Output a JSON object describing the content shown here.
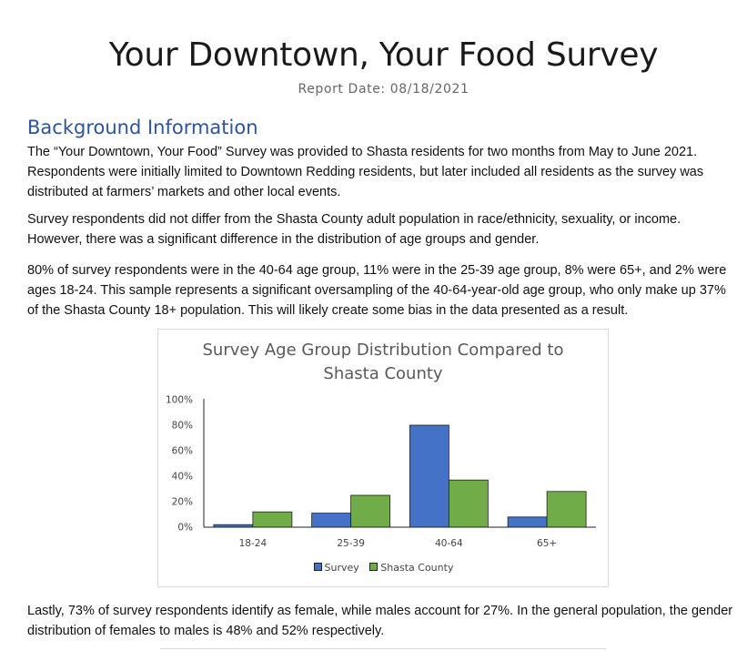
{
  "page": {
    "title": "Your Downtown, Your Food Survey",
    "report_date": "Report Date: 08/18/2021",
    "section_heading": "Background Information",
    "paragraphs": [
      "The “Your Downtown, Your Food” Survey was provided to Shasta residents for two months from May to June 2021. Respondents were initially limited to Downtown Redding residents, but later included all residents as the survey was distributed at farmers’ markets and other local events.",
      "Survey respondents did not differ from the Shasta County adult population in race/ethnicity, sexuality, or income. However, there was a significant difference in the distribution of age groups and gender.",
      "80% of survey respondents were in the 40-64 age group, 11% were in the 25-39 age group, 8% were 65+, and 2% were ages 18-24.  This sample represents a significant oversampling of the 40-64-year-old age group, who only make up 37% of the Shasta County 18+ population.  This will likely create some bias in the data presented as a result.",
      "Lastly, 73% of survey respondents identify as female, while males account for 27%.  In the general population, the gender distribution of females to males is 48% and 52% respectively."
    ]
  },
  "chart_data": {
    "type": "bar",
    "title_lines": [
      "Survey Age Group Distribution Compared to",
      "Shasta County"
    ],
    "categories": [
      "18-24",
      "25-39",
      "40-64",
      "65+"
    ],
    "series": [
      {
        "name": "Survey",
        "values": [
          2,
          11,
          80,
          8
        ],
        "color": "#4472c4"
      },
      {
        "name": "Shasta County",
        "values": [
          12,
          25,
          37,
          28
        ],
        "color": "#70ad47"
      }
    ],
    "ylim": [
      0,
      100
    ],
    "yticks": [
      0,
      20,
      40,
      60,
      80,
      100
    ],
    "ytick_labels": [
      "0%",
      "20%",
      "40%",
      "60%",
      "80%",
      "100%"
    ],
    "grid": false,
    "legend_position": "bottom"
  }
}
